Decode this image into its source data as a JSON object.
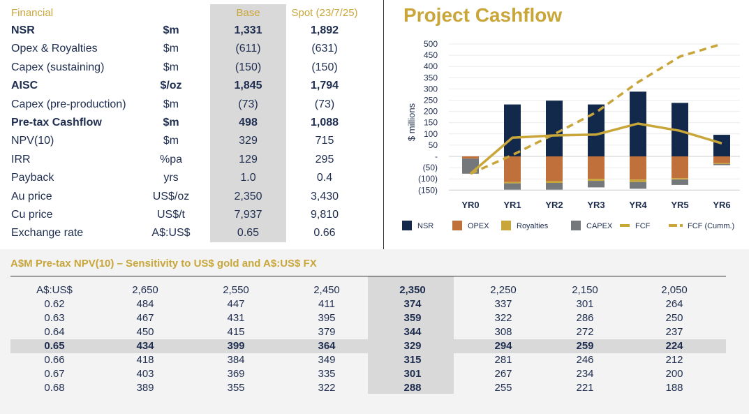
{
  "financial": {
    "headers": {
      "label": "Financial",
      "base": "Base",
      "spot": "Spot (23/7/25)"
    },
    "rows": [
      {
        "label": "NSR",
        "unit": "$m",
        "base": "1,331",
        "spot": "1,892",
        "bold": true
      },
      {
        "label": "Opex & Royalties",
        "unit": "$m",
        "base": "(611)",
        "spot": "(631)",
        "bold": false
      },
      {
        "label": "Capex (sustaining)",
        "unit": "$m",
        "base": "(150)",
        "spot": "(150)",
        "bold": false
      },
      {
        "label": "AISC",
        "unit": "$/oz",
        "base": "1,845",
        "spot": "1,794",
        "bold": true
      },
      {
        "label": "Capex (pre-production)",
        "unit": "$m",
        "base": "(73)",
        "spot": "(73)",
        "bold": false
      },
      {
        "label": "Pre-tax Cashflow",
        "unit": "$m",
        "base": "498",
        "spot": "1,088",
        "bold": true
      },
      {
        "label": "NPV(10)",
        "unit": "$m",
        "base": "329",
        "spot": "715",
        "bold": false
      },
      {
        "label": "IRR",
        "unit": "%pa",
        "base": "129",
        "spot": "295",
        "bold": false
      },
      {
        "label": "Payback",
        "unit": "yrs",
        "base": "1.0",
        "spot": "0.4",
        "bold": false
      },
      {
        "label": "Au price",
        "unit": "US$/oz",
        "base": "2,350",
        "spot": "3,430",
        "bold": false
      },
      {
        "label": "Cu price",
        "unit": "US$/t",
        "base": "7,937",
        "spot": "9,810",
        "bold": false
      },
      {
        "label": "Exchange rate",
        "unit": "A$:US$",
        "base": "0.65",
        "spot": "0.66",
        "bold": false
      }
    ]
  },
  "chart_data": {
    "type": "bar",
    "title": "Project Cashflow",
    "ylabel": "$ millions",
    "xlabel": "",
    "ylim": [
      -150,
      500
    ],
    "yticks": [
      500,
      450,
      400,
      350,
      300,
      250,
      200,
      150,
      100,
      50,
      0,
      -50,
      -100,
      -150
    ],
    "ytick_labels": [
      "500",
      "450",
      "400",
      "350",
      "300",
      "250",
      "200",
      "150",
      "100",
      "50",
      "-",
      "(50)",
      "(100)",
      "(150)"
    ],
    "grid": true,
    "legend_placement": "bottom",
    "categories": [
      "YR0",
      "YR1",
      "YR2",
      "YR3",
      "YR4",
      "YR5",
      "YR6"
    ],
    "stacked": true,
    "series": [
      {
        "name": "NSR",
        "kind": "bar",
        "color": "#13294b",
        "values": [
          0,
          231,
          248,
          231,
          288,
          238,
          96
        ]
      },
      {
        "name": "OPEX",
        "kind": "bar",
        "color": "#c0703a",
        "values": [
          -10,
          -114,
          -110,
          -100,
          -103,
          -97,
          -30
        ]
      },
      {
        "name": "Royalties",
        "kind": "bar",
        "color": "#c9a63a",
        "values": [
          0,
          -6,
          -8,
          -9,
          -11,
          -6,
          -4
        ]
      },
      {
        "name": "CAPEX",
        "kind": "bar",
        "color": "#75787b",
        "values": [
          -67,
          -28,
          -30,
          -29,
          -30,
          -24,
          -5
        ]
      },
      {
        "name": "FCF",
        "kind": "line",
        "color": "#c9a63a",
        "values": [
          -77,
          83,
          93,
          97,
          146,
          114,
          58
        ]
      },
      {
        "name": "FCF (Cumm.)",
        "kind": "dashed-line",
        "color": "#c9a63a",
        "values": [
          -77,
          6,
          99,
          196,
          330,
          444,
          500
        ]
      }
    ]
  },
  "sensitivity": {
    "title": "A$M Pre-tax NPV(10) – Sensitivity to US$ gold and A$:US$ FX",
    "corner": "A$:US$",
    "gold_prices": [
      "2,650",
      "2,550",
      "2,450",
      "2,350",
      "2,250",
      "2,150",
      "2,050"
    ],
    "base_col_index": 3,
    "base_row_index": 3,
    "rows": [
      {
        "fx": "0.62",
        "values": [
          "484",
          "447",
          "411",
          "374",
          "337",
          "301",
          "264"
        ]
      },
      {
        "fx": "0.63",
        "values": [
          "467",
          "431",
          "395",
          "359",
          "322",
          "286",
          "250"
        ]
      },
      {
        "fx": "0.64",
        "values": [
          "450",
          "415",
          "379",
          "344",
          "308",
          "272",
          "237"
        ]
      },
      {
        "fx": "0.65",
        "values": [
          "434",
          "399",
          "364",
          "329",
          "294",
          "259",
          "224"
        ]
      },
      {
        "fx": "0.66",
        "values": [
          "418",
          "384",
          "349",
          "315",
          "281",
          "246",
          "212"
        ]
      },
      {
        "fx": "0.67",
        "values": [
          "403",
          "369",
          "335",
          "301",
          "267",
          "234",
          "200"
        ]
      },
      {
        "fx": "0.68",
        "values": [
          "389",
          "355",
          "322",
          "288",
          "255",
          "221",
          "188"
        ]
      }
    ]
  },
  "colors": {
    "navy": "#1e2d4f",
    "gold": "#c9a63a",
    "highlight": "#d9d9d9"
  }
}
